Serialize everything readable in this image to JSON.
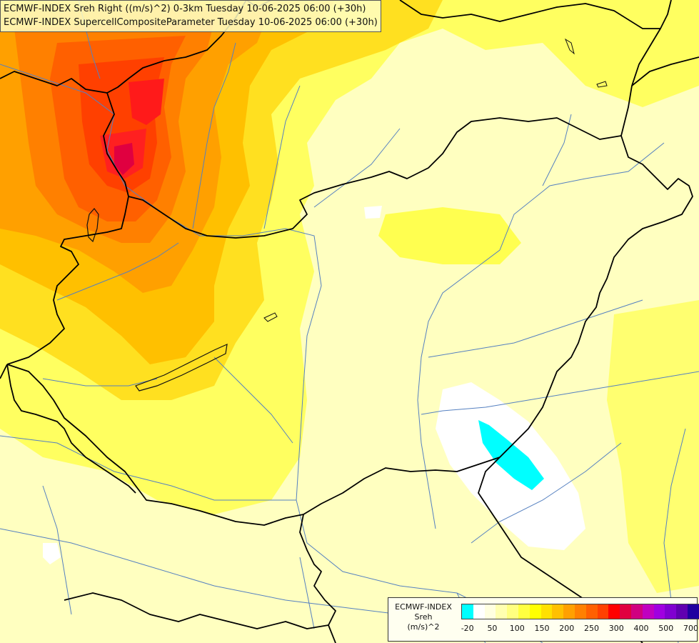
{
  "header": {
    "line1": "ECMWF-INDEX Sreh Right ((m/s)^2) 0-3km Tuesday 10-06-2025 06:00 (+30h)",
    "line2": "ECMWF-INDEX SupercellCompositeParameter Tuesday 10-06-2025 06:00 (+30h)"
  },
  "legend": {
    "source": "ECMWF-INDEX",
    "parameter": "Sreh",
    "unit": "(m/s)^2",
    "colors": [
      "#00ffff",
      "#ffffff",
      "#ffffe0",
      "#ffffb0",
      "#ffff80",
      "#ffff40",
      "#ffff00",
      "#ffe000",
      "#ffc000",
      "#ffa000",
      "#ff8000",
      "#ff6000",
      "#ff4000",
      "#ff0000",
      "#e00040",
      "#d00080",
      "#c000c0",
      "#a000e0",
      "#8000d0",
      "#6000b0",
      "#2000a0",
      "#000080"
    ],
    "ticks": [
      {
        "label": "-20",
        "index": 0.5
      },
      {
        "label": "50",
        "index": 2.5
      },
      {
        "label": "100",
        "index": 4.5
      },
      {
        "label": "150",
        "index": 6.5
      },
      {
        "label": "200",
        "index": 8.5
      },
      {
        "label": "250",
        "index": 10.5
      },
      {
        "label": "300",
        "index": 12.5
      },
      {
        "label": "400",
        "index": 14.5
      },
      {
        "label": "500",
        "index": 16.5
      },
      {
        "label": "700",
        "index": 18.5
      }
    ]
  }
}
